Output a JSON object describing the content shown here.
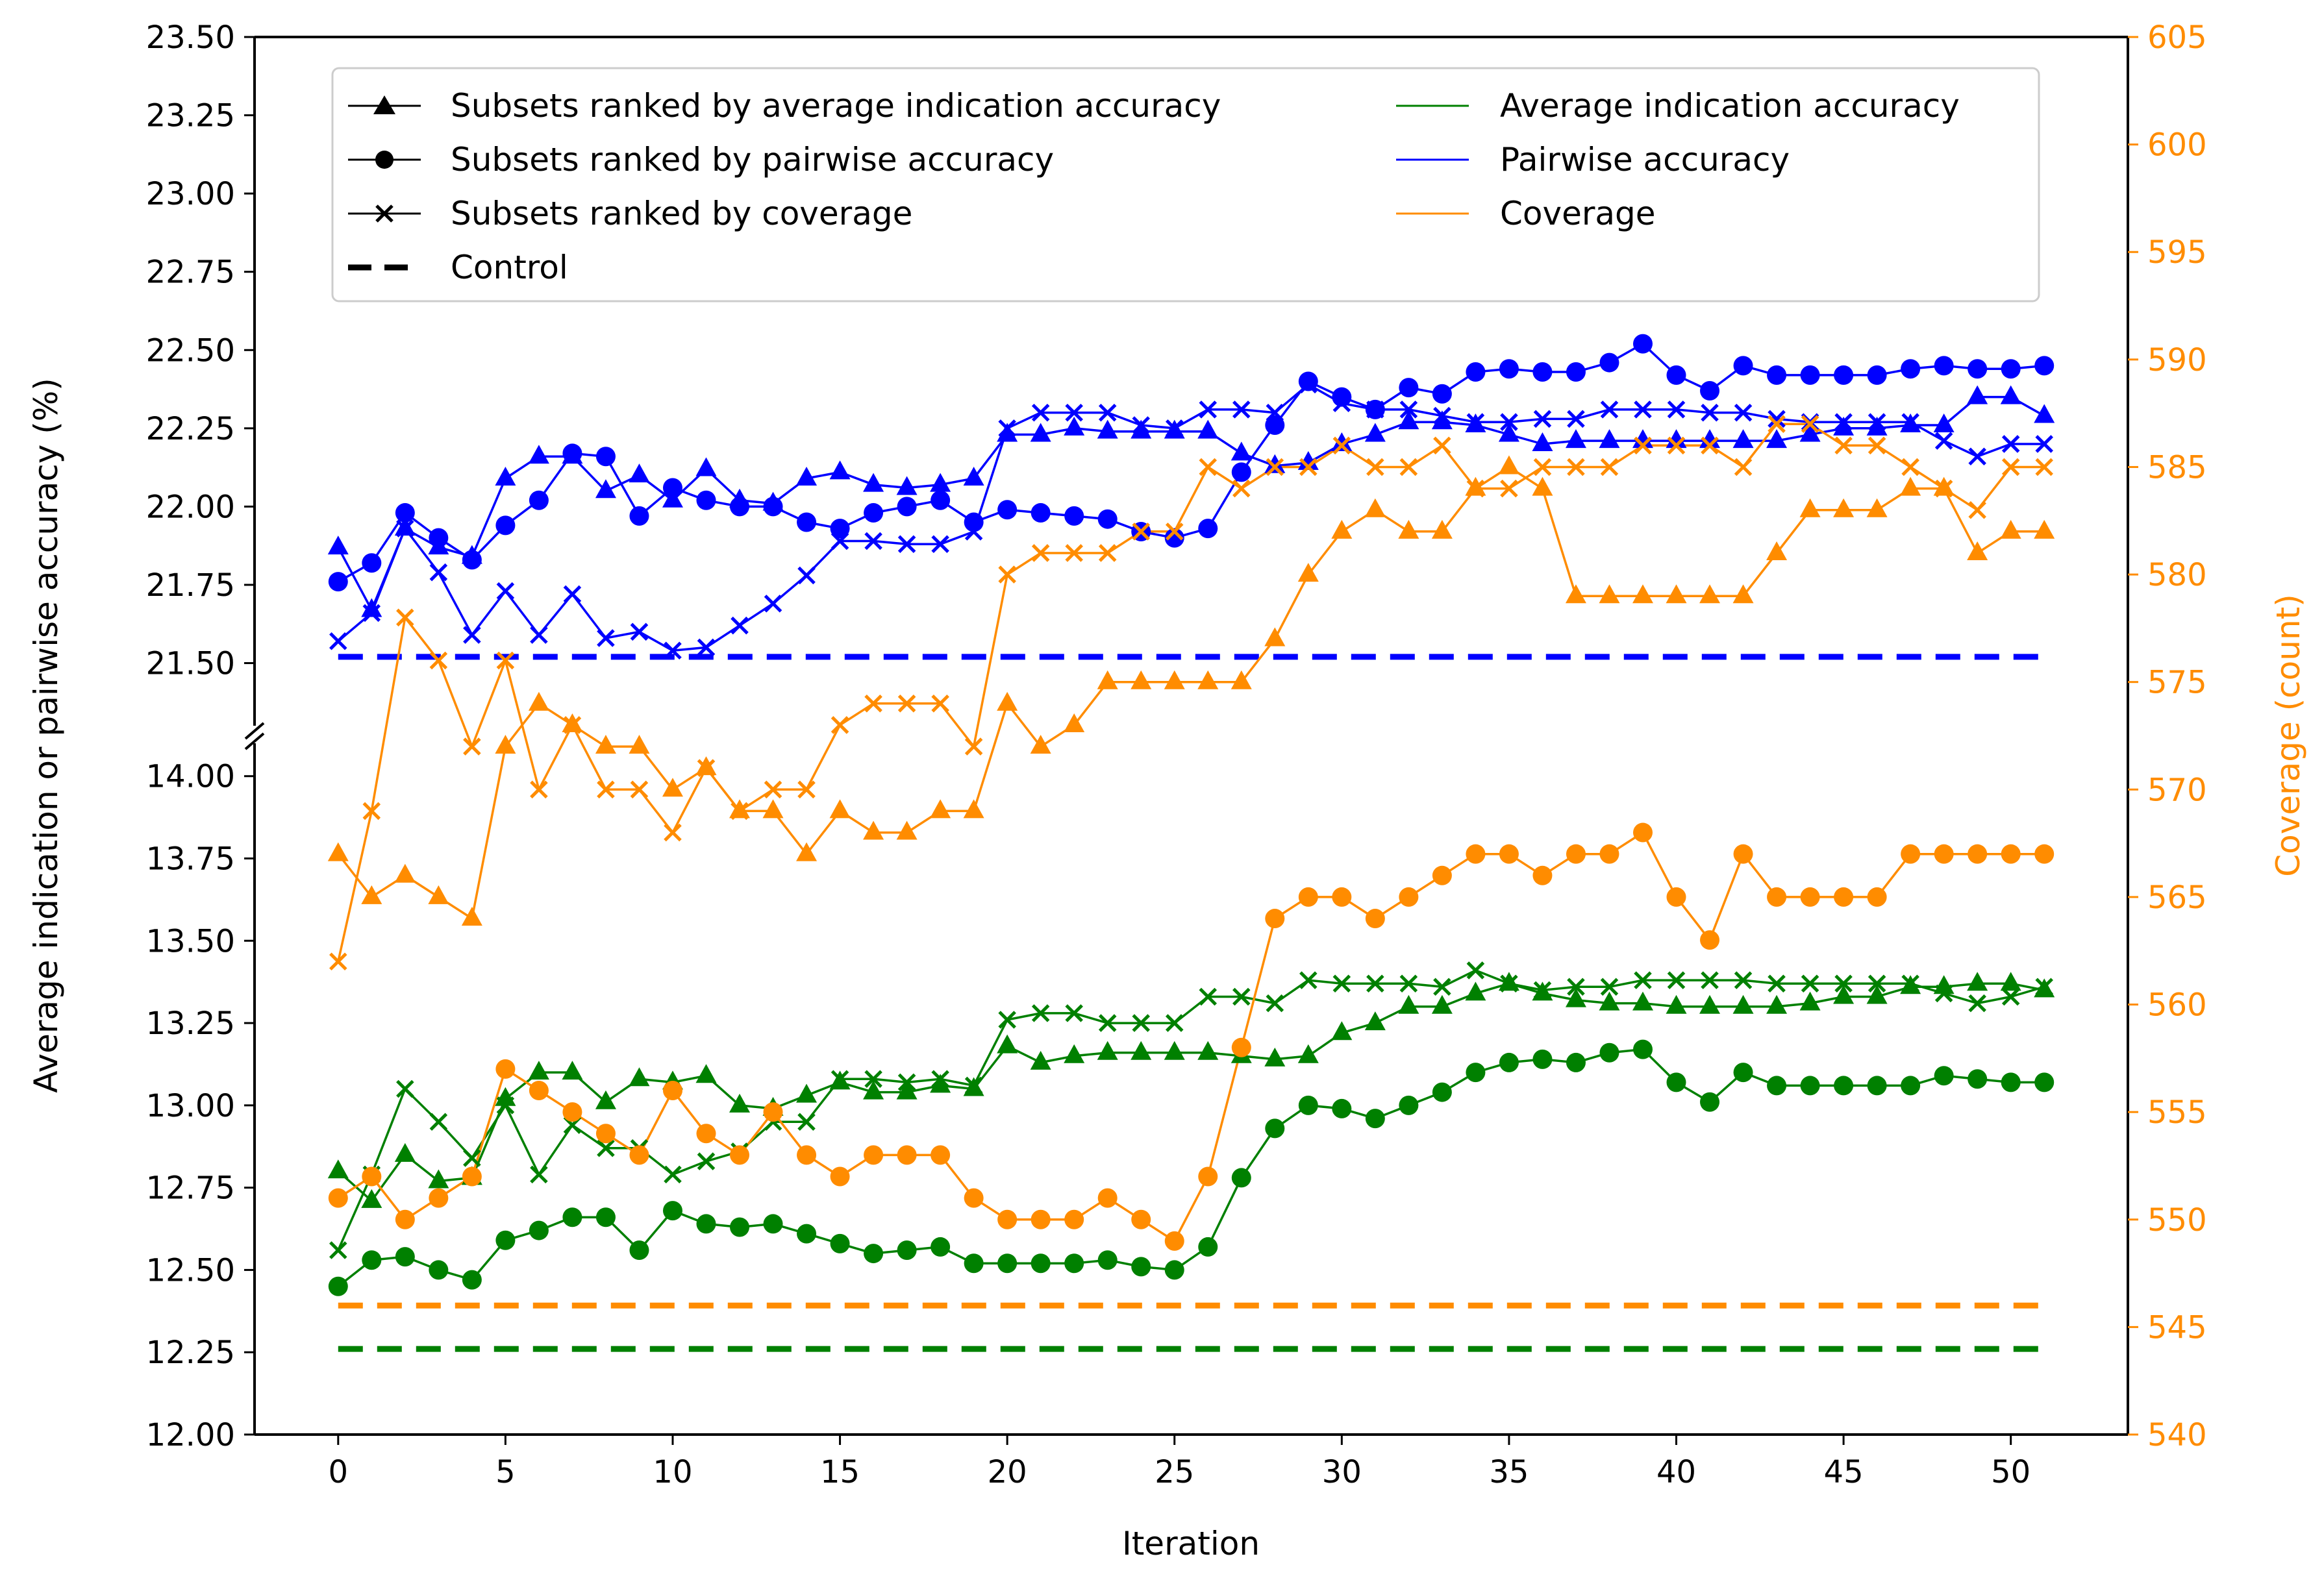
{
  "chart_data": {
    "type": "line",
    "xlabel": "Iteration",
    "ylabel_left": "Average indication or pairwise accuracy (%)",
    "ylabel_right": "Coverage (count)",
    "x_ticks": [
      "0",
      "5",
      "10",
      "15",
      "20",
      "25",
      "30",
      "35",
      "40",
      "45",
      "50"
    ],
    "y_ticks_left_upper": [
      "21.50",
      "21.75",
      "22.00",
      "22.25",
      "22.50",
      "22.75",
      "23.00",
      "23.25",
      "23.50"
    ],
    "y_ticks_left_lower": [
      "12.00",
      "12.25",
      "12.50",
      "12.75",
      "13.00",
      "13.25",
      "13.50",
      "13.75",
      "14.00"
    ],
    "y_ticks_right": [
      "540",
      "545",
      "550",
      "555",
      "560",
      "565",
      "570",
      "575",
      "580",
      "585",
      "590",
      "595",
      "600",
      "605"
    ],
    "x_range": [
      -2.5,
      53.5
    ],
    "y_range_left_upper": [
      21.3,
      23.5
    ],
    "y_range_left_lower": [
      12.0,
      14.1
    ],
    "y_range_right": [
      540,
      605
    ],
    "colors": {
      "indication": "#008000",
      "pairwise": "#0000ff",
      "coverage": "#ff8c00",
      "axis": "#000000"
    },
    "legend": {
      "markers": [
        {
          "label": "Subsets ranked by average indication accuracy",
          "marker": "triangle"
        },
        {
          "label": "Subsets ranked by pairwise accuracy",
          "marker": "circle"
        },
        {
          "label": "Subsets ranked by coverage",
          "marker": "x"
        },
        {
          "label": "Control",
          "marker": "dashed"
        }
      ],
      "colors": [
        {
          "label": "Average indication accuracy",
          "color": "#008000"
        },
        {
          "label": "Pairwise accuracy",
          "color": "#0000ff"
        },
        {
          "label": "Coverage",
          "color": "#ff8c00"
        }
      ]
    },
    "controls": {
      "pairwise": 21.52,
      "indication": 12.26,
      "coverage": 546
    },
    "x": [
      0,
      1,
      2,
      3,
      4,
      5,
      6,
      7,
      8,
      9,
      10,
      11,
      12,
      13,
      14,
      15,
      16,
      17,
      18,
      19,
      20,
      21,
      22,
      23,
      24,
      25,
      26,
      27,
      28,
      29,
      30,
      31,
      32,
      33,
      34,
      35,
      36,
      37,
      38,
      39,
      40,
      41,
      42,
      43,
      44,
      45,
      46,
      47,
      48,
      49,
      50,
      51
    ],
    "series": [
      {
        "name": "Pairwise accuracy / ranked by average indication accuracy",
        "metric": "pairwise",
        "marker": "triangle",
        "values": [
          21.87,
          21.67,
          21.93,
          21.87,
          21.84,
          22.09,
          22.16,
          22.16,
          22.05,
          22.1,
          22.02,
          22.12,
          22.02,
          22.01,
          22.09,
          22.11,
          22.07,
          22.06,
          22.07,
          22.09,
          22.23,
          22.23,
          22.25,
          22.24,
          22.24,
          22.24,
          22.24,
          22.17,
          22.13,
          22.14,
          22.2,
          22.23,
          22.27,
          22.27,
          22.26,
          22.23,
          22.2,
          22.21,
          22.21,
          22.21,
          22.21,
          22.21,
          22.21,
          22.21,
          22.23,
          22.25,
          22.25,
          22.26,
          22.26,
          22.35,
          22.35,
          22.29
        ]
      },
      {
        "name": "Pairwise accuracy / ranked by pairwise accuracy",
        "metric": "pairwise",
        "marker": "circle",
        "values": [
          21.76,
          21.82,
          21.98,
          21.9,
          21.83,
          21.94,
          22.02,
          22.17,
          22.16,
          21.97,
          22.06,
          22.02,
          22.0,
          22.0,
          21.95,
          21.93,
          21.98,
          22.0,
          22.02,
          21.95,
          21.99,
          21.98,
          21.97,
          21.96,
          21.92,
          21.9,
          21.93,
          22.11,
          22.26,
          22.4,
          22.35,
          22.31,
          22.38,
          22.36,
          22.43,
          22.44,
          22.43,
          22.43,
          22.46,
          22.52,
          22.42,
          22.37,
          22.45,
          22.42,
          22.42,
          22.42,
          22.42,
          22.44,
          22.45,
          22.44,
          22.44,
          22.45
        ]
      },
      {
        "name": "Pairwise accuracy / ranked by coverage",
        "metric": "pairwise",
        "marker": "x",
        "values": [
          21.57,
          21.66,
          21.93,
          21.79,
          21.59,
          21.73,
          21.59,
          21.72,
          21.58,
          21.6,
          21.54,
          21.55,
          21.62,
          21.69,
          21.78,
          21.89,
          21.89,
          21.88,
          21.88,
          21.92,
          22.25,
          22.3,
          22.3,
          22.3,
          22.26,
          22.25,
          22.31,
          22.31,
          22.3,
          22.39,
          22.33,
          22.31,
          22.31,
          22.29,
          22.27,
          22.27,
          22.28,
          22.28,
          22.31,
          22.31,
          22.31,
          22.3,
          22.3,
          22.28,
          22.27,
          22.27,
          22.27,
          22.27,
          22.21,
          22.16,
          22.2,
          22.2
        ]
      },
      {
        "name": "Average indication accuracy / ranked by average indication accuracy",
        "metric": "indication",
        "marker": "triangle",
        "values": [
          12.8,
          12.71,
          12.85,
          12.77,
          12.78,
          13.02,
          13.1,
          13.1,
          13.01,
          13.08,
          13.07,
          13.09,
          13.0,
          12.99,
          13.03,
          13.07,
          13.04,
          13.04,
          13.06,
          13.05,
          13.18,
          13.13,
          13.15,
          13.16,
          13.16,
          13.16,
          13.16,
          13.15,
          13.14,
          13.15,
          13.22,
          13.25,
          13.3,
          13.3,
          13.34,
          13.37,
          13.34,
          13.32,
          13.31,
          13.31,
          13.3,
          13.3,
          13.3,
          13.3,
          13.31,
          13.33,
          13.33,
          13.36,
          13.36,
          13.37,
          13.37,
          13.35
        ]
      },
      {
        "name": "Average indication accuracy / ranked by pairwise accuracy",
        "metric": "indication",
        "marker": "circle",
        "values": [
          12.45,
          12.53,
          12.54,
          12.5,
          12.47,
          12.59,
          12.62,
          12.66,
          12.66,
          12.56,
          12.68,
          12.64,
          12.63,
          12.64,
          12.61,
          12.58,
          12.55,
          12.56,
          12.57,
          12.52,
          12.52,
          12.52,
          12.52,
          12.53,
          12.51,
          12.5,
          12.57,
          12.78,
          12.93,
          13.0,
          12.99,
          12.96,
          13.0,
          13.04,
          13.1,
          13.13,
          13.14,
          13.13,
          13.16,
          13.17,
          13.07,
          13.01,
          13.1,
          13.06,
          13.06,
          13.06,
          13.06,
          13.06,
          13.09,
          13.08,
          13.07,
          13.07
        ]
      },
      {
        "name": "Average indication accuracy / ranked by coverage",
        "metric": "indication",
        "marker": "x",
        "values": [
          12.56,
          12.79,
          13.05,
          12.95,
          12.84,
          13.0,
          12.79,
          12.94,
          12.87,
          12.87,
          12.79,
          12.83,
          12.86,
          12.95,
          12.95,
          13.08,
          13.08,
          13.07,
          13.08,
          13.06,
          13.26,
          13.28,
          13.28,
          13.25,
          13.25,
          13.25,
          13.33,
          13.33,
          13.31,
          13.38,
          13.37,
          13.37,
          13.37,
          13.36,
          13.41,
          13.37,
          13.35,
          13.36,
          13.36,
          13.38,
          13.38,
          13.38,
          13.38,
          13.37,
          13.37,
          13.37,
          13.37,
          13.37,
          13.34,
          13.31,
          13.33,
          13.36
        ]
      },
      {
        "name": "Coverage / ranked by average indication accuracy",
        "metric": "coverage",
        "marker": "triangle",
        "values": [
          567,
          565,
          566,
          565,
          564,
          572,
          574,
          573,
          572,
          572,
          570,
          571,
          569,
          569,
          567,
          569,
          568,
          568,
          569,
          569,
          574,
          572,
          573,
          575,
          575,
          575,
          575,
          575,
          577,
          580,
          582,
          583,
          582,
          582,
          584,
          585,
          584,
          579,
          579,
          579,
          579,
          579,
          579,
          581,
          583,
          583,
          583,
          584,
          584,
          581,
          582,
          582
        ]
      },
      {
        "name": "Coverage / ranked by pairwise accuracy",
        "metric": "coverage",
        "marker": "circle",
        "values": [
          551,
          552,
          550,
          551,
          552,
          557,
          556,
          555,
          554,
          553,
          556,
          554,
          553,
          555,
          553,
          552,
          553,
          553,
          553,
          551,
          550,
          550,
          550,
          551,
          550,
          549,
          552,
          558,
          564,
          565,
          565,
          564,
          565,
          566,
          567,
          567,
          566,
          567,
          567,
          568,
          565,
          563,
          567,
          565,
          565,
          565,
          565,
          567,
          567,
          567,
          567,
          567
        ]
      },
      {
        "name": "Coverage / ranked by coverage",
        "metric": "coverage",
        "marker": "x",
        "values": [
          562,
          569,
          578,
          576,
          572,
          576,
          570,
          573,
          570,
          570,
          568,
          571,
          569,
          570,
          570,
          573,
          574,
          574,
          574,
          572,
          580,
          581,
          581,
          581,
          582,
          582,
          585,
          584,
          585,
          585,
          586,
          585,
          585,
          586,
          584,
          584,
          585,
          585,
          585,
          586,
          586,
          586,
          585,
          587,
          587,
          586,
          586,
          585,
          584,
          583,
          585,
          585
        ]
      }
    ]
  }
}
